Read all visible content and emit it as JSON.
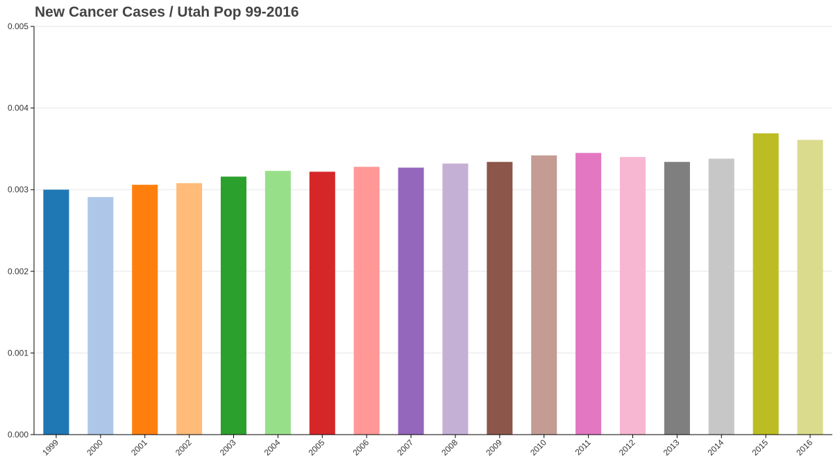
{
  "chart_data": {
    "type": "bar",
    "title": "New Cancer Cases / Utah Pop 99-2016",
    "xlabel": "",
    "ylabel": "",
    "categories": [
      "1999",
      "2000",
      "2001",
      "2002",
      "2003",
      "2004",
      "2005",
      "2006",
      "2007",
      "2008",
      "2009",
      "2010",
      "2011",
      "2012",
      "2013",
      "2014",
      "2015",
      "2016"
    ],
    "values": [
      0.003,
      0.00291,
      0.00306,
      0.00308,
      0.00316,
      0.00323,
      0.00322,
      0.00328,
      0.00327,
      0.00332,
      0.00334,
      0.00342,
      0.00345,
      0.0034,
      0.00334,
      0.00338,
      0.00369,
      0.00361
    ],
    "colors": [
      "#1f77b4",
      "#aec7e8",
      "#ff7f0e",
      "#ffbb78",
      "#2ca02c",
      "#98df8a",
      "#d62728",
      "#ff9896",
      "#9467bd",
      "#c5b0d5",
      "#8c564b",
      "#c49c94",
      "#e377c2",
      "#f7b6d2",
      "#7f7f7f",
      "#c7c7c7",
      "#bcbd22",
      "#dbdb8d"
    ],
    "ylim": [
      0,
      0.005
    ],
    "yticks": [
      "0.000",
      "0.001",
      "0.002",
      "0.003",
      "0.004",
      "0.005"
    ],
    "grid": true,
    "legend": "none"
  }
}
